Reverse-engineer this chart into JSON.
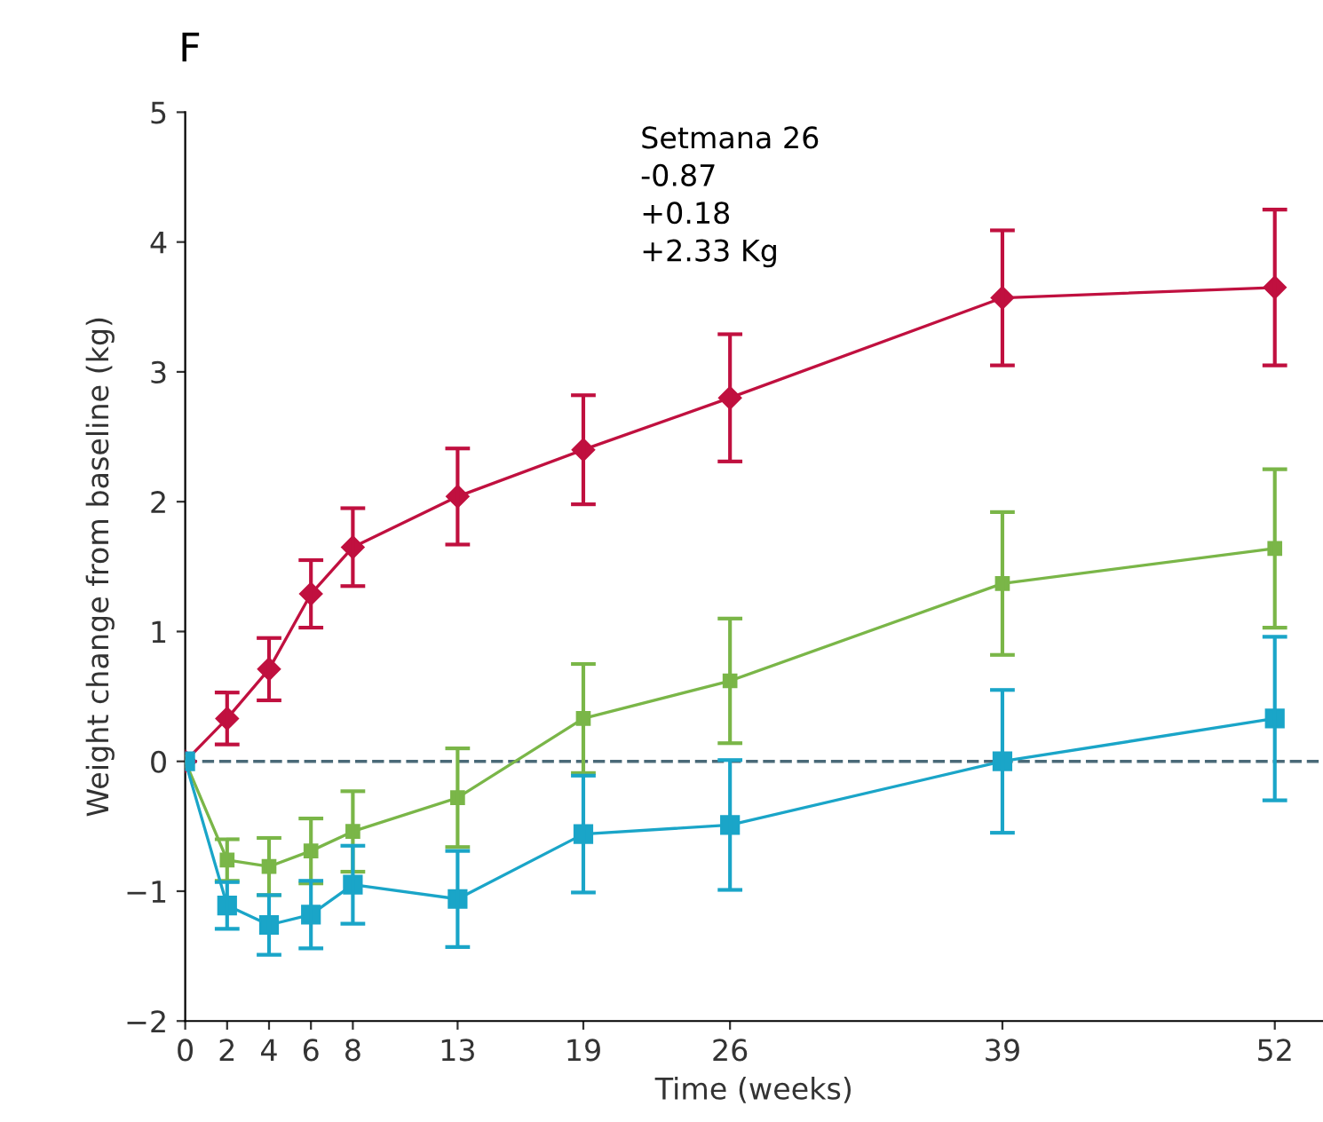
{
  "chart_data": {
    "type": "line",
    "title": "F",
    "xlabel": "Time (weeks)",
    "ylabel": "Weight change from baseline (kg)",
    "x": [
      0,
      2,
      4,
      6,
      8,
      13,
      19,
      26,
      39,
      52
    ],
    "series": [
      {
        "color": "#c0103f",
        "marker": "diamond",
        "values": [
          0,
          0.33,
          0.71,
          1.29,
          1.65,
          2.04,
          2.4,
          2.8,
          3.57,
          3.65
        ],
        "errors": [
          null,
          0.2,
          0.24,
          0.26,
          0.3,
          0.37,
          0.42,
          0.49,
          0.52,
          0.6
        ]
      },
      {
        "color": "#7ab648",
        "marker": "square",
        "values": [
          0,
          -0.76,
          -0.81,
          -0.69,
          -0.54,
          -0.28,
          0.33,
          0.62,
          1.37,
          1.64
        ],
        "errors": [
          null,
          0.16,
          0.22,
          0.25,
          0.31,
          0.38,
          0.42,
          0.48,
          0.55,
          0.61
        ]
      },
      {
        "color": "#1aa5c8",
        "marker": "square",
        "values": [
          0,
          -1.11,
          -1.26,
          -1.18,
          -0.95,
          -1.06,
          -0.56,
          -0.49,
          0,
          0.33
        ],
        "errors": [
          null,
          0.18,
          0.23,
          0.26,
          0.3,
          0.37,
          0.45,
          0.5,
          0.55,
          0.63
        ]
      }
    ],
    "xlim": [
      0,
      54.3
    ],
    "ylim": [
      -2,
      5
    ],
    "xticks": [
      0,
      2,
      4,
      6,
      8,
      13,
      19,
      26,
      39,
      52
    ],
    "yticks": [
      -2,
      -1,
      0,
      1,
      2,
      3,
      4,
      5
    ],
    "ref_lines": [
      {
        "axis": "y",
        "value": 0,
        "color": "#4a6a78",
        "line_style": "dashed"
      }
    ],
    "annotations": [
      "Setmana 26\n-0.87\n+0.18\n+2.33 Kg"
    ],
    "grid": false,
    "legend": false,
    "line_style": "solid"
  }
}
